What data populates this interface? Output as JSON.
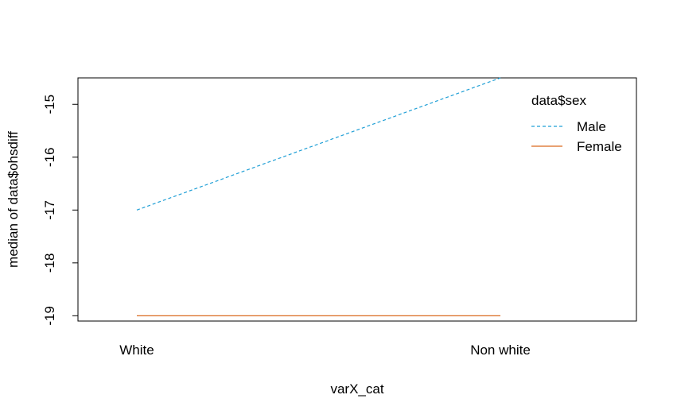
{
  "chart_data": {
    "type": "line",
    "title": "",
    "xlabel": "varX_cat",
    "ylabel": "median of  data$ohsdiff",
    "categories": [
      "White",
      "Non white"
    ],
    "ylim": [
      -19.1,
      -14.5
    ],
    "yticks": [
      -19,
      -18,
      -17,
      -16,
      -15
    ],
    "legend": {
      "title": "data$sex",
      "position": "top-right"
    },
    "series": [
      {
        "name": "Male",
        "values": [
          -17,
          -14.5
        ],
        "color": "#1f9fd6",
        "linestyle": "dashed"
      },
      {
        "name": "Female",
        "values": [
          -19,
          -19
        ],
        "color": "#d9691e",
        "linestyle": "solid"
      }
    ],
    "grid": false
  }
}
